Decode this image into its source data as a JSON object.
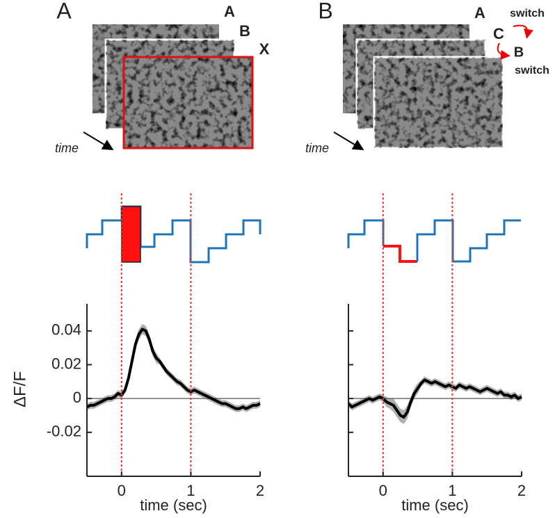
{
  "chart_data": [
    {
      "type": "line",
      "title": "A",
      "annotations": [
        "A",
        "B",
        "X",
        "time"
      ],
      "ylabel": "ΔF/F",
      "xlabel": "time (sec)",
      "xlim": [
        -0.5,
        2
      ],
      "ylim": [
        -0.046,
        0.056
      ],
      "xticks": [
        0,
        1,
        2
      ],
      "yticks": [
        {
          "value": -0.02,
          "label": "-0.02"
        },
        0,
        {
          "value": 0.02,
          "label": "0.02"
        },
        {
          "value": 0.04,
          "label": "0.04"
        }
      ],
      "ytick_labels": true,
      "zero_line": true,
      "stim_lines": [
        0,
        1
      ],
      "color": "#000000",
      "error_color": "#b0b0b0",
      "x": [
        -0.5,
        -0.45,
        -0.4,
        -0.35,
        -0.3,
        -0.25,
        -0.2,
        -0.15,
        -0.1,
        -0.05,
        0,
        0.05,
        0.1,
        0.15,
        0.2,
        0.25,
        0.3,
        0.35,
        0.4,
        0.45,
        0.5,
        0.55,
        0.6,
        0.65,
        0.7,
        0.75,
        0.8,
        0.85,
        0.9,
        0.95,
        1,
        1.05,
        1.1,
        1.15,
        1.2,
        1.25,
        1.3,
        1.35,
        1.4,
        1.45,
        1.5,
        1.55,
        1.6,
        1.65,
        1.7,
        1.75,
        1.8,
        1.85,
        1.9,
        1.95,
        2
      ],
      "values": [
        -0.005,
        -0.004,
        -0.004,
        -0.003,
        -0.002,
        -0.001,
        0,
        0,
        0.001,
        0.003,
        0.002,
        0.005,
        0.012,
        0.022,
        0.032,
        0.038,
        0.041,
        0.04,
        0.035,
        0.028,
        0.024,
        0.022,
        0.019,
        0.016,
        0.014,
        0.012,
        0.01,
        0.009,
        0.007,
        0.005,
        0.004,
        0.005,
        0.004,
        0.003,
        0.002,
        0.001,
        0,
        -0.001,
        -0.002,
        -0.003,
        -0.003,
        -0.004,
        -0.005,
        -0.006,
        -0.006,
        -0.005,
        -0.006,
        -0.005,
        -0.004,
        -0.004,
        -0.003
      ],
      "error": [
        0.002,
        0.002,
        0.002,
        0.002,
        0.002,
        0.002,
        0.002,
        0.002,
        0.002,
        0.002,
        0.002,
        0.002,
        0.003,
        0.003,
        0.003,
        0.003,
        0.003,
        0.003,
        0.003,
        0.003,
        0.003,
        0.002,
        0.002,
        0.002,
        0.002,
        0.002,
        0.002,
        0.002,
        0.002,
        0.002,
        0.002,
        0.002,
        0.002,
        0.002,
        0.002,
        0.002,
        0.002,
        0.002,
        0.002,
        0.002,
        0.002,
        0.002,
        0.002,
        0.002,
        0.002,
        0.002,
        0.002,
        0.002,
        0.002,
        0.002,
        0.002
      ]
    },
    {
      "type": "line",
      "title": "B",
      "annotations": [
        "A",
        "switch",
        "C",
        "B",
        "switch",
        "time"
      ],
      "xlabel": "time (sec)",
      "xlim": [
        -0.5,
        2
      ],
      "ylim": [
        -0.046,
        0.056
      ],
      "xticks": [
        0,
        1,
        2
      ],
      "yticks": [
        -0.02,
        0,
        0.02,
        0.04
      ],
      "ytick_labels": false,
      "zero_line": true,
      "stim_lines": [
        0,
        1
      ],
      "color": "#000000",
      "error_color": "#b0b0b0",
      "x": [
        -0.5,
        -0.45,
        -0.4,
        -0.35,
        -0.3,
        -0.25,
        -0.2,
        -0.15,
        -0.1,
        -0.05,
        0,
        0.05,
        0.1,
        0.15,
        0.2,
        0.25,
        0.3,
        0.35,
        0.4,
        0.45,
        0.5,
        0.55,
        0.6,
        0.65,
        0.7,
        0.75,
        0.8,
        0.85,
        0.9,
        0.95,
        1,
        1.05,
        1.1,
        1.15,
        1.2,
        1.25,
        1.3,
        1.35,
        1.4,
        1.45,
        1.5,
        1.55,
        1.6,
        1.65,
        1.7,
        1.75,
        1.8,
        1.85,
        1.9,
        1.95,
        2
      ],
      "values": [
        -0.003,
        -0.005,
        -0.004,
        -0.003,
        -0.002,
        -0.001,
        0,
        -0.001,
        0,
        0.001,
        0,
        -0.002,
        -0.003,
        -0.004,
        -0.007,
        -0.01,
        -0.011,
        -0.008,
        -0.002,
        0.003,
        0.006,
        0.009,
        0.011,
        0.01,
        0.009,
        0.01,
        0.009,
        0.008,
        0.007,
        0.008,
        0.007,
        0.006,
        0.008,
        0.007,
        0.006,
        0.007,
        0.006,
        0.005,
        0.004,
        0.005,
        0.006,
        0.005,
        0.004,
        0.003,
        0.004,
        0.002,
        0.002,
        0.001,
        0.002,
        0,
        0.001
      ],
      "error": [
        0.002,
        0.002,
        0.002,
        0.002,
        0.002,
        0.002,
        0.002,
        0.002,
        0.002,
        0.002,
        0.002,
        0.003,
        0.003,
        0.004,
        0.004,
        0.004,
        0.004,
        0.004,
        0.003,
        0.003,
        0.003,
        0.002,
        0.002,
        0.002,
        0.002,
        0.002,
        0.002,
        0.002,
        0.002,
        0.002,
        0.002,
        0.002,
        0.002,
        0.002,
        0.002,
        0.002,
        0.002,
        0.002,
        0.002,
        0.002,
        0.002,
        0.002,
        0.002,
        0.002,
        0.002,
        0.002,
        0.002,
        0.002,
        0.002,
        0.002,
        0.002
      ]
    }
  ]
}
